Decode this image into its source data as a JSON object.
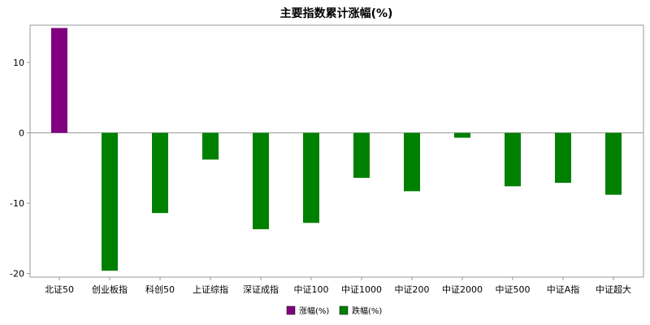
{
  "chart_data": {
    "type": "bar",
    "title": "主要指数累计涨幅(%)",
    "xlabel": "",
    "ylabel": "",
    "categories": [
      "北证50",
      "创业板指",
      "科创50",
      "上证综指",
      "深证成指",
      "中证100",
      "中证1000",
      "中证200",
      "中证2000",
      "中证500",
      "中证A指",
      "中证超大"
    ],
    "values": [
      14.9,
      -19.6,
      -11.4,
      -3.8,
      -13.7,
      -12.8,
      -6.4,
      -8.3,
      -0.7,
      -7.6,
      -7.1,
      -8.8
    ],
    "ylim": [
      -20.5,
      15.3
    ],
    "yticks": [
      -20,
      -10,
      0,
      10
    ],
    "grid": false,
    "legend_position": "bottom-center",
    "series": [
      {
        "name": "涨幅(%)",
        "color": "#800080"
      },
      {
        "name": "跌幅(%)",
        "color": "#008000"
      }
    ]
  }
}
